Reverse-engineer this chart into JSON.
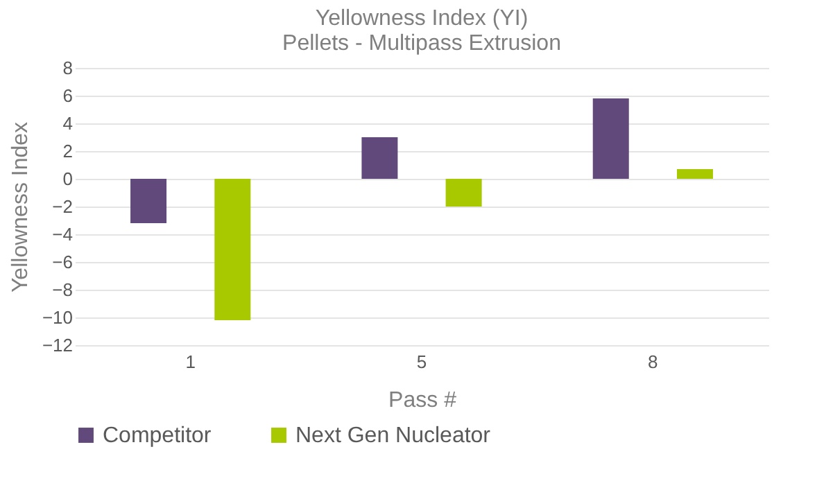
{
  "chart_data": {
    "type": "bar",
    "title": "Yellowness Index (YI)",
    "subtitle": "Pellets - Multipass Extrusion",
    "xlabel": "Pass #",
    "ylabel": "Yellowness Index",
    "categories": [
      "1",
      "5",
      "8"
    ],
    "series": [
      {
        "name": "Competitor",
        "color": "#614a7b",
        "values": [
          -3.2,
          3.0,
          5.8
        ]
      },
      {
        "name": "Next Gen Nucleator",
        "color": "#a8c800",
        "values": [
          -10.2,
          -2.0,
          0.7
        ]
      }
    ],
    "ylim": [
      -12,
      8
    ],
    "yticks": [
      -12,
      -10,
      -8,
      -6,
      -4,
      -2,
      0,
      2,
      4,
      6,
      8
    ],
    "grid": "y",
    "legend": "bottom"
  }
}
